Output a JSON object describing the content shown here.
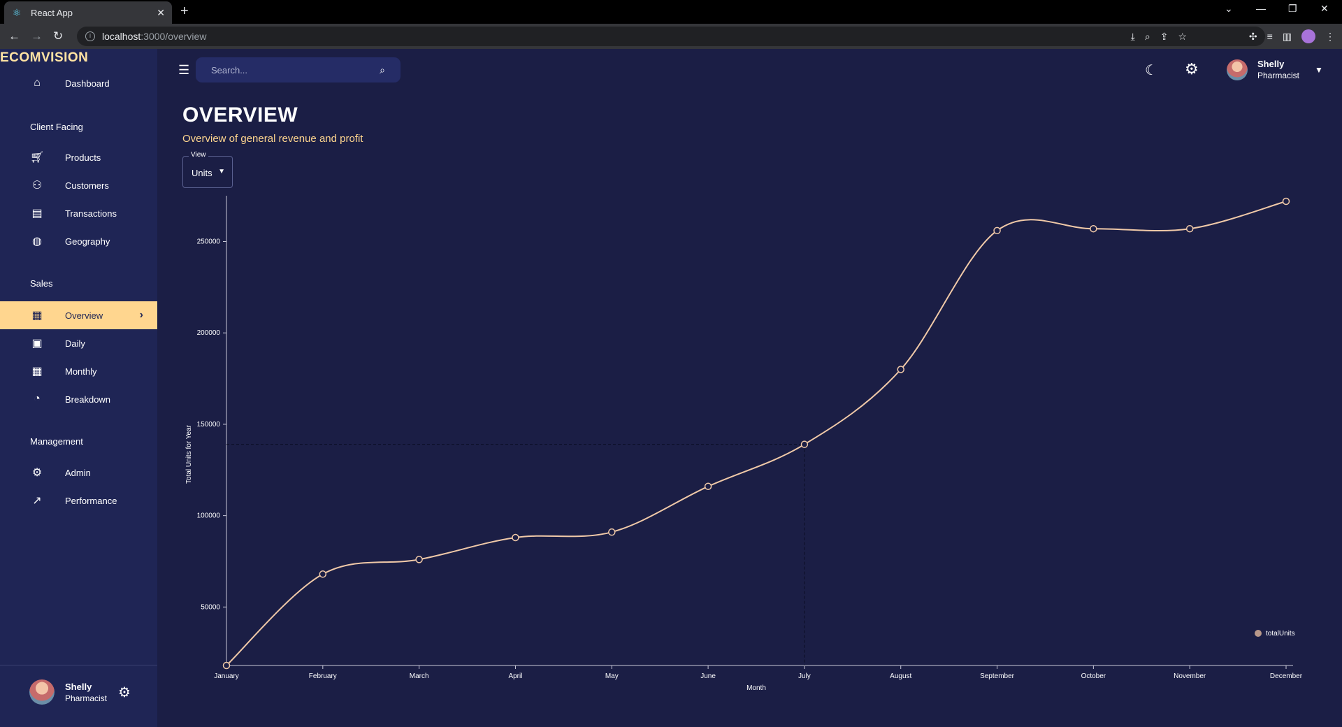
{
  "browser": {
    "tab_title": "React App",
    "url_host": "localhost",
    "url_path": ":3000/overview"
  },
  "sidebar": {
    "brand": "ECOMVISION",
    "items": [
      {
        "label": "Dashboard",
        "icon": "home-icon"
      },
      {
        "section": "Client Facing"
      },
      {
        "label": "Products",
        "icon": "shopping-cart-icon"
      },
      {
        "label": "Customers",
        "icon": "groups-icon"
      },
      {
        "label": "Transactions",
        "icon": "receipt-icon"
      },
      {
        "label": "Geography",
        "icon": "globe-icon"
      },
      {
        "section": "Sales"
      },
      {
        "label": "Overview",
        "icon": "point-of-sale-icon",
        "active": true
      },
      {
        "label": "Daily",
        "icon": "today-icon"
      },
      {
        "label": "Monthly",
        "icon": "calendar-month-icon"
      },
      {
        "label": "Breakdown",
        "icon": "pie-chart-icon"
      },
      {
        "section": "Management"
      },
      {
        "label": "Admin",
        "icon": "admin-icon"
      },
      {
        "label": "Performance",
        "icon": "trending-up-icon"
      }
    ],
    "user": {
      "name": "Shelly",
      "role": "Pharmacist"
    }
  },
  "topbar": {
    "search_placeholder": "Search...",
    "user": {
      "name": "Shelly",
      "role": "Pharmacist"
    }
  },
  "page": {
    "title": "OVERVIEW",
    "subtitle": "Overview of general revenue and profit",
    "view_label": "View",
    "view_value": "Units"
  },
  "colors": {
    "line": "#f0c9a8",
    "accent": "#ffd68f",
    "bg": "#1b1e45"
  },
  "chart_data": {
    "type": "line",
    "categories": [
      "January",
      "February",
      "March",
      "April",
      "May",
      "June",
      "July",
      "August",
      "September",
      "October",
      "November",
      "December"
    ],
    "series": [
      {
        "name": "totalUnits",
        "values": [
          18000,
          68000,
          76000,
          88000,
          91000,
          116000,
          139000,
          180000,
          256000,
          257000,
          257000,
          272000
        ]
      }
    ],
    "xlabel": "Month",
    "ylabel": "Total Units for Year",
    "yticks": [
      50000,
      100000,
      150000,
      200000,
      250000
    ],
    "ylim": [
      18000,
      272000
    ],
    "legend": "bottom-right",
    "highlight_category": "July"
  }
}
